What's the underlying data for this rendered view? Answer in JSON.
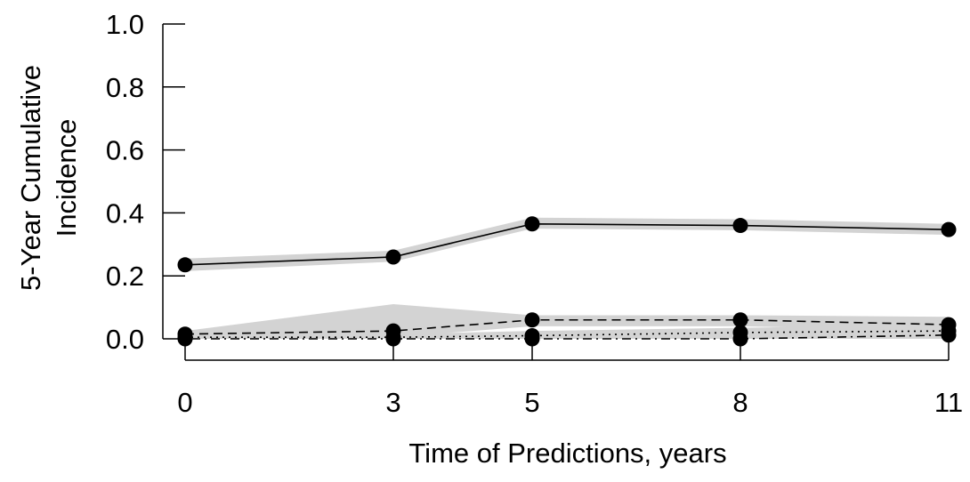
{
  "chart_data": {
    "type": "line",
    "title": "",
    "xlabel": "Time of Predictions, years",
    "ylabel_lines": [
      "5-Year Cumulative",
      "Incidence"
    ],
    "x": [
      0,
      3,
      5,
      8,
      11
    ],
    "x_ticks": [
      "0",
      "3",
      "5",
      "8",
      "11"
    ],
    "y_ticks": [
      "0.0",
      "0.2",
      "0.4",
      "0.6",
      "0.8",
      "1.0"
    ],
    "xlim": [
      0,
      11
    ],
    "ylim": [
      0,
      1
    ],
    "grid": false,
    "band_color": "#d3d3d3",
    "line_color": "#000000",
    "series": [
      {
        "style": "solid",
        "values": [
          0.235,
          0.26,
          0.365,
          0.36,
          0.347
        ],
        "lower": [
          0.215,
          0.245,
          0.35,
          0.345,
          0.33
        ],
        "upper": [
          0.255,
          0.28,
          0.385,
          0.38,
          0.365
        ]
      },
      {
        "style": "dashed",
        "values": [
          0.015,
          0.025,
          0.06,
          0.06,
          0.045
        ],
        "lower": [
          0.005,
          0.005,
          0.04,
          0.04,
          0.025
        ],
        "upper": [
          0.025,
          0.11,
          0.075,
          0.075,
          0.07
        ]
      },
      {
        "style": "dotted",
        "values": [
          0.005,
          0.005,
          0.01,
          0.02,
          0.025
        ],
        "lower": [
          0.0,
          0.0,
          0.0,
          0.005,
          0.01
        ],
        "upper": [
          0.01,
          0.015,
          0.025,
          0.035,
          0.045
        ]
      },
      {
        "style": "dotdash",
        "values": [
          0.0,
          0.0,
          0.0,
          0.0,
          0.012
        ],
        "lower": [
          0.0,
          0.0,
          0.0,
          0.0,
          0.0
        ],
        "upper": [
          0.005,
          0.005,
          0.005,
          0.005,
          0.025
        ]
      }
    ]
  }
}
